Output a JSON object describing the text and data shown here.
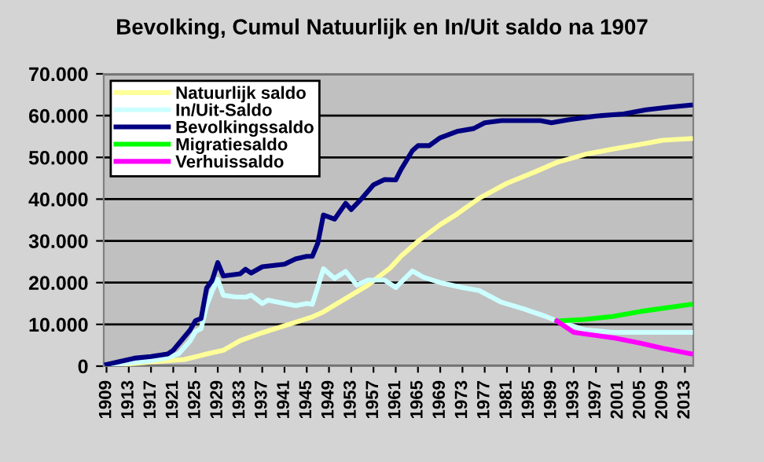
{
  "chart_data": {
    "type": "line",
    "title": "Bevolking, Cumul Natuurlijk en In/Uit saldo na 1907",
    "xlim": [
      1908.5,
      2014.5
    ],
    "xticks": [
      1909,
      1913,
      1917,
      1921,
      1925,
      1929,
      1933,
      1937,
      1941,
      1945,
      1949,
      1953,
      1957,
      1961,
      1965,
      1969,
      1973,
      1977,
      1981,
      1985,
      1989,
      1993,
      1997,
      2001,
      2005,
      2009,
      2013
    ],
    "ylim": [
      0,
      70000
    ],
    "yticks": [
      {
        "value": 0,
        "label": "0"
      },
      {
        "value": 10000,
        "label": "10.000"
      },
      {
        "value": 20000,
        "label": "20.000"
      },
      {
        "value": 30000,
        "label": "30.000"
      },
      {
        "value": 40000,
        "label": "40.000"
      },
      {
        "value": 50000,
        "label": "50.000"
      },
      {
        "value": 60000,
        "label": "60.000"
      },
      {
        "value": 70000,
        "label": "70.000"
      }
    ],
    "grid": "y",
    "legend": "top left",
    "marker": "none",
    "line_style": "solid",
    "series": [
      {
        "name": "Natuurlijk saldo",
        "color": "#ffff99",
        "x": [
          1909,
          1917,
          1923,
          1927,
          1930,
          1933,
          1937,
          1942,
          1946,
          1948,
          1952,
          1956,
          1960,
          1962,
          1965,
          1969,
          1972,
          1976,
          1981,
          1986,
          1990,
          1995,
          2000,
          2005,
          2009,
          2014
        ],
        "values": [
          100,
          1000,
          1600,
          2900,
          3800,
          6100,
          8000,
          10100,
          11800,
          13000,
          16200,
          19400,
          23500,
          26400,
          29900,
          33900,
          36400,
          40200,
          43800,
          46500,
          48800,
          50700,
          52000,
          53100,
          54100,
          54500
        ]
      },
      {
        "name": "In/Uit-Saldo",
        "color": "#ccffff",
        "x": [
          1909,
          1917,
          1920,
          1922,
          1924,
          1925,
          1926,
          1927,
          1928,
          1929,
          1930,
          1932,
          1934,
          1935,
          1937,
          1938,
          1941,
          1943,
          1945,
          1946,
          1947,
          1948,
          1950,
          1952,
          1954,
          1956,
          1959,
          1961,
          1964,
          1966,
          1969,
          1973,
          1976,
          1980,
          1984,
          1988,
          1990,
          1995,
          2000,
          2014
        ],
        "values": [
          300,
          1300,
          2000,
          3000,
          6000,
          8300,
          9000,
          14500,
          18000,
          20800,
          17000,
          16600,
          16500,
          17000,
          15000,
          15800,
          15000,
          14500,
          15000,
          14800,
          19000,
          23300,
          21000,
          22700,
          19400,
          20600,
          20600,
          18800,
          22800,
          21300,
          20000,
          18800,
          18100,
          15300,
          13700,
          11900,
          10800,
          8700,
          8100,
          8100
        ]
      },
      {
        "name": "Bevolkingssaldo",
        "color": "#000080",
        "x": [
          1909,
          1911,
          1914,
          1917,
          1920,
          1921,
          1922,
          1924,
          1925,
          1926,
          1927,
          1928,
          1929,
          1930,
          1933,
          1934,
          1935,
          1937,
          1941,
          1943,
          1945,
          1946,
          1947,
          1948,
          1950,
          1952,
          1953,
          1955,
          1957,
          1959,
          1961,
          1962,
          1964,
          1965,
          1967,
          1969,
          1972,
          1975,
          1977,
          1980,
          1987,
          1989,
          1992,
          1997,
          2002,
          2006,
          2010,
          2014
        ],
        "values": [
          400,
          1000,
          1900,
          2300,
          2900,
          3800,
          5400,
          8600,
          10900,
          11400,
          18700,
          20600,
          24800,
          21600,
          22100,
          23200,
          22300,
          23800,
          24400,
          25700,
          26300,
          26300,
          29500,
          36200,
          35200,
          39000,
          37500,
          40300,
          43400,
          44700,
          44600,
          47200,
          51600,
          52800,
          52800,
          54700,
          56200,
          56900,
          58300,
          58800,
          58800,
          58300,
          59000,
          59900,
          60400,
          61400,
          62000,
          62500
        ]
      },
      {
        "name": "Migratiesaldo",
        "color": "#00ff00",
        "x": [
          1990,
          1995,
          2000,
          2005,
          2014
        ],
        "values": [
          10800,
          11200,
          11900,
          13100,
          14800
        ]
      },
      {
        "name": "Verhuissaldo",
        "color": "#ff00ff",
        "x": [
          1990,
          1993,
          1995,
          2000,
          2005,
          2009,
          2014
        ],
        "values": [
          10800,
          8100,
          7700,
          6800,
          5500,
          4300,
          3000
        ]
      }
    ]
  }
}
